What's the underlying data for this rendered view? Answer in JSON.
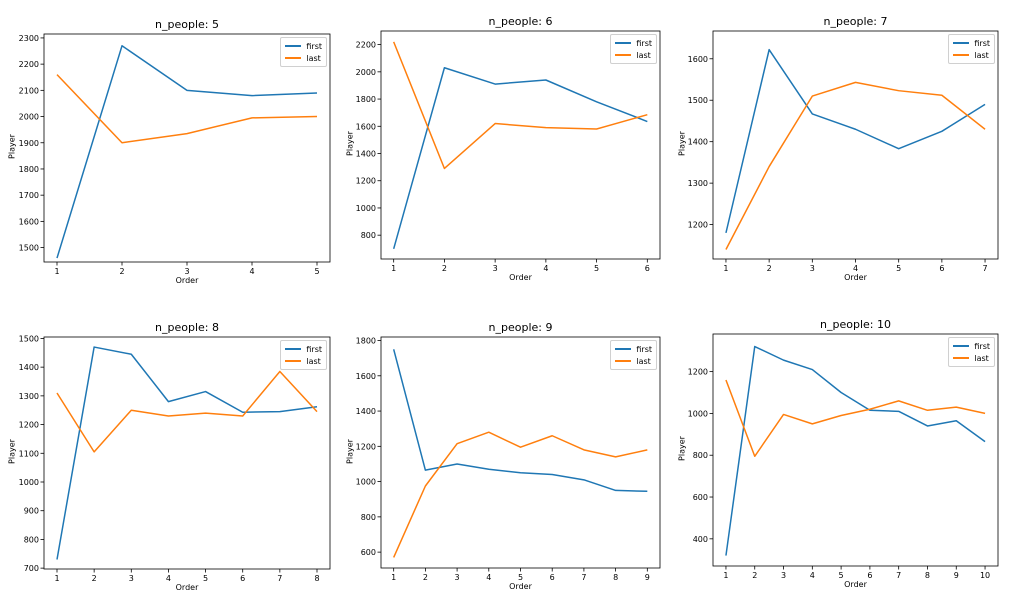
{
  "colors": {
    "first": "#1f77b4",
    "last": "#ff7f0e",
    "axis": "#000000"
  },
  "chart_data": [
    {
      "type": "line",
      "title": "n_people: 5",
      "xlabel": "Order",
      "ylabel": "Player",
      "x": [
        1,
        2,
        3,
        4,
        5
      ],
      "xlim": [
        0.8,
        5.2
      ],
      "ylim": [
        1445,
        2315
      ],
      "yticks": [
        1500,
        1600,
        1700,
        1800,
        1900,
        2000,
        2100,
        2200,
        2300
      ],
      "series": [
        {
          "name": "first",
          "values": [
            1460,
            2270,
            2100,
            2080,
            2090
          ]
        },
        {
          "name": "last",
          "values": [
            2160,
            1900,
            1935,
            1995,
            2000
          ]
        }
      ]
    },
    {
      "type": "line",
      "title": "n_people: 6",
      "xlabel": "Order",
      "ylabel": "Player",
      "x": [
        1,
        2,
        3,
        4,
        5,
        6
      ],
      "xlim": [
        0.75,
        6.25
      ],
      "ylim": [
        625,
        2300
      ],
      "yticks": [
        800,
        1000,
        1200,
        1400,
        1600,
        1800,
        2000,
        2200
      ],
      "series": [
        {
          "name": "first",
          "values": [
            700,
            2030,
            1910,
            1940,
            1780,
            1635
          ]
        },
        {
          "name": "last",
          "values": [
            2220,
            1290,
            1620,
            1590,
            1580,
            1685
          ]
        }
      ]
    },
    {
      "type": "line",
      "title": "n_people: 7",
      "xlabel": "Order",
      "ylabel": "Player",
      "x": [
        1,
        2,
        3,
        4,
        5,
        6,
        7
      ],
      "xlim": [
        0.7,
        7.3
      ],
      "ylim": [
        1117,
        1667
      ],
      "yticks": [
        1200,
        1300,
        1400,
        1500,
        1600
      ],
      "series": [
        {
          "name": "first",
          "values": [
            1180,
            1622,
            1467,
            1430,
            1383,
            1425,
            1490
          ]
        },
        {
          "name": "last",
          "values": [
            1140,
            1340,
            1510,
            1543,
            1523,
            1512,
            1430
          ]
        }
      ]
    },
    {
      "type": "line",
      "title": "n_people: 8",
      "xlabel": "Order",
      "ylabel": "Player",
      "x": [
        1,
        2,
        3,
        4,
        5,
        6,
        7,
        8
      ],
      "xlim": [
        0.65,
        8.35
      ],
      "ylim": [
        697,
        1505
      ],
      "yticks": [
        700,
        800,
        900,
        1000,
        1100,
        1200,
        1300,
        1400,
        1500
      ],
      "series": [
        {
          "name": "first",
          "values": [
            730,
            1470,
            1445,
            1280,
            1315,
            1243,
            1245,
            1262
          ]
        },
        {
          "name": "last",
          "values": [
            1310,
            1105,
            1250,
            1230,
            1240,
            1230,
            1385,
            1245
          ]
        }
      ]
    },
    {
      "type": "line",
      "title": "n_people: 9",
      "xlabel": "Order",
      "ylabel": "Player",
      "x": [
        1,
        2,
        3,
        4,
        5,
        6,
        7,
        8,
        9
      ],
      "xlim": [
        0.6,
        9.4
      ],
      "ylim": [
        510,
        1820
      ],
      "yticks": [
        600,
        800,
        1000,
        1200,
        1400,
        1600,
        1800
      ],
      "series": [
        {
          "name": "first",
          "values": [
            1750,
            1065,
            1100,
            1070,
            1050,
            1040,
            1010,
            950,
            945
          ]
        },
        {
          "name": "last",
          "values": [
            570,
            975,
            1215,
            1280,
            1195,
            1260,
            1180,
            1140,
            1180
          ]
        }
      ]
    },
    {
      "type": "line",
      "title": "n_people: 10",
      "xlabel": "Order",
      "ylabel": "Player",
      "x": [
        1,
        2,
        3,
        4,
        5,
        6,
        7,
        8,
        9,
        10
      ],
      "xlim": [
        0.55,
        10.45
      ],
      "ylim": [
        270,
        1380
      ],
      "yticks": [
        400,
        600,
        800,
        1000,
        1200
      ],
      "series": [
        {
          "name": "first",
          "values": [
            320,
            1320,
            1255,
            1210,
            1100,
            1015,
            1010,
            940,
            965,
            865
          ]
        },
        {
          "name": "last",
          "values": [
            1160,
            795,
            995,
            950,
            990,
            1020,
            1060,
            1015,
            1030,
            1000
          ]
        }
      ]
    }
  ]
}
